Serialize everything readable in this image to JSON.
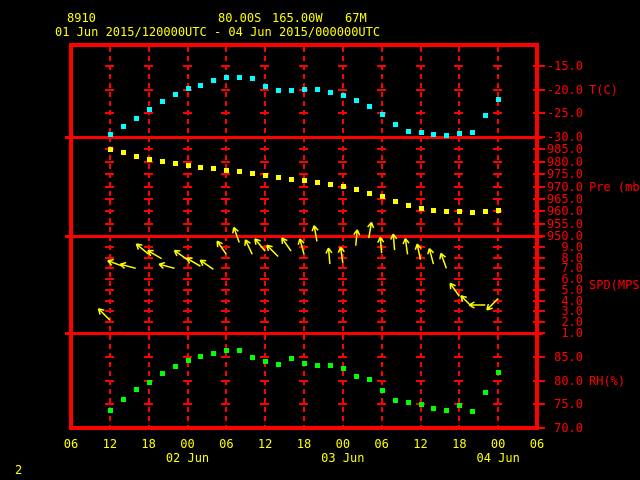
{
  "header": {
    "station_id": "8910",
    "latitude": "80.00S",
    "longitude": "165.00W",
    "elevation": "67M",
    "time_range": "01 Jun 2015/120000UTC - 04 Jun 2015/000000UTC"
  },
  "footer": {
    "page_number": "2"
  },
  "colors": {
    "background": "#000000",
    "frame": "#ff0000",
    "axis_text": "#ff0000",
    "time_text": "#ffff00",
    "temperature": "#00ffff",
    "pressure": "#ffff00",
    "wind": "#ffff00",
    "humidity": "#00ff00"
  },
  "x_axis": {
    "start_label": "01 Jun 12UTC",
    "range_hours": [
      -6,
      66
    ],
    "tick_step_hours": 6,
    "hour_tick_labels": [
      "06",
      "12",
      "18",
      "00",
      "06",
      "12",
      "18",
      "00",
      "06",
      "12",
      "18",
      "00",
      "06"
    ],
    "date_labels": [
      {
        "label": "02 Jun",
        "hour": 12
      },
      {
        "label": "03 Jun",
        "hour": 36
      },
      {
        "label": "04 Jun",
        "hour": 60
      }
    ],
    "sample_hours": [
      0,
      2,
      4,
      6,
      8,
      10,
      12,
      14,
      16,
      18,
      20,
      22,
      24,
      26,
      28,
      30,
      32,
      34,
      36,
      38,
      40,
      42,
      44,
      46,
      48,
      50,
      52,
      54,
      56,
      58,
      60
    ]
  },
  "chart_data": [
    {
      "type": "scatter",
      "name": "temperature",
      "unit_label": "T(C)",
      "unit_anchor_value": -20,
      "color": "#00ffff",
      "ylim": [
        -30,
        -10
      ],
      "yticks": [
        {
          "value": -15,
          "label": "-15.0"
        },
        {
          "value": -20,
          "label": "-20.0"
        },
        {
          "value": -25,
          "label": "-25.0"
        },
        {
          "value": -30,
          "label": "-30.0"
        }
      ],
      "values": [
        -29.4,
        -27.6,
        -26.0,
        -24.1,
        -22.4,
        -20.9,
        -19.7,
        -19.0,
        -18.0,
        -17.3,
        -17.3,
        -17.6,
        -19.3,
        -20.2,
        -20.0,
        -19.8,
        -19.8,
        -20.5,
        -21.1,
        -22.2,
        -23.5,
        -25.2,
        -27.3,
        -28.7,
        -28.9,
        -29.3,
        -29.5,
        -29.1,
        -29.0,
        -25.3,
        -22.0
      ]
    },
    {
      "type": "scatter",
      "name": "pressure",
      "unit_label": "Pre (mb)",
      "unit_anchor_value": 970,
      "color": "#ffff00",
      "ylim": [
        950,
        990
      ],
      "yticks": [
        {
          "value": 985,
          "label": "985.0"
        },
        {
          "value": 980,
          "label": "980.0"
        },
        {
          "value": 975,
          "label": "975.0"
        },
        {
          "value": 970,
          "label": "970.0"
        },
        {
          "value": 965,
          "label": "965.0"
        },
        {
          "value": 960,
          "label": "960.0"
        },
        {
          "value": 955,
          "label": "955.0"
        },
        {
          "value": 950,
          "label": "950.0"
        }
      ],
      "values": [
        985.2,
        984.0,
        982.5,
        981.3,
        980.3,
        979.4,
        978.7,
        978.0,
        977.3,
        976.8,
        976.2,
        975.5,
        974.8,
        974.0,
        973.2,
        972.5,
        972.0,
        971.2,
        970.3,
        969.0,
        967.2,
        966.0,
        964.2,
        962.6,
        961.5,
        960.6,
        960.1,
        959.9,
        959.8,
        960.0,
        960.5
      ]
    },
    {
      "type": "wind_vector",
      "name": "wind-speed",
      "unit_label": "SPD(MPS)",
      "unit_anchor_value": 5.5,
      "color": "#ffff00",
      "ylim": [
        1,
        10
      ],
      "yticks": [
        {
          "value": 9,
          "label": "9.0"
        },
        {
          "value": 8,
          "label": "8.0"
        },
        {
          "value": 7,
          "label": "7.0"
        },
        {
          "value": 6,
          "label": "6.0"
        },
        {
          "value": 5,
          "label": "5.0"
        },
        {
          "value": 4,
          "label": "4.0"
        },
        {
          "value": 3,
          "label": "3.0"
        },
        {
          "value": 2,
          "label": "2.0"
        },
        {
          "value": 1,
          "label": "1.0"
        }
      ],
      "values": [
        2.2,
        7.2,
        7.0,
        8.3,
        7.9,
        7.0,
        7.8,
        7.2,
        6.9,
        8.3,
        9.4,
        8.3,
        8.6,
        8.1,
        8.6,
        8.3,
        9.5,
        7.4,
        7.5,
        9.1,
        9.8,
        8.4,
        8.7,
        8.3,
        7.8,
        7.4,
        7.0,
        4.4,
        3.4,
        3.6,
        4.2
      ],
      "directions_deg": [
        -45,
        -70,
        -75,
        -50,
        -60,
        -75,
        -55,
        -60,
        -55,
        -35,
        -20,
        -25,
        -40,
        -45,
        -35,
        -15,
        -10,
        -5,
        -8,
        5,
        10,
        -5,
        -5,
        -8,
        -12,
        -15,
        -20,
        -35,
        -45,
        -90,
        -135
      ]
    },
    {
      "type": "scatter",
      "name": "relative-humidity",
      "unit_label": "RH(%)",
      "unit_anchor_value": 80,
      "color": "#00ff00",
      "ylim": [
        70,
        90
      ],
      "yticks": [
        {
          "value": 85,
          "label": "85.0"
        },
        {
          "value": 80,
          "label": "80.0"
        },
        {
          "value": 75,
          "label": "75.0"
        },
        {
          "value": 70,
          "label": "70.0"
        }
      ],
      "values": [
        73.8,
        76.2,
        78.3,
        79.6,
        81.5,
        83.0,
        84.4,
        85.2,
        85.8,
        86.5,
        86.4,
        85.0,
        84.2,
        83.5,
        84.8,
        83.7,
        83.3,
        83.3,
        82.7,
        81.0,
        80.4,
        78.0,
        76.0,
        75.5,
        75.0,
        74.2,
        73.8,
        74.8,
        73.6,
        77.5,
        81.7
      ]
    }
  ]
}
